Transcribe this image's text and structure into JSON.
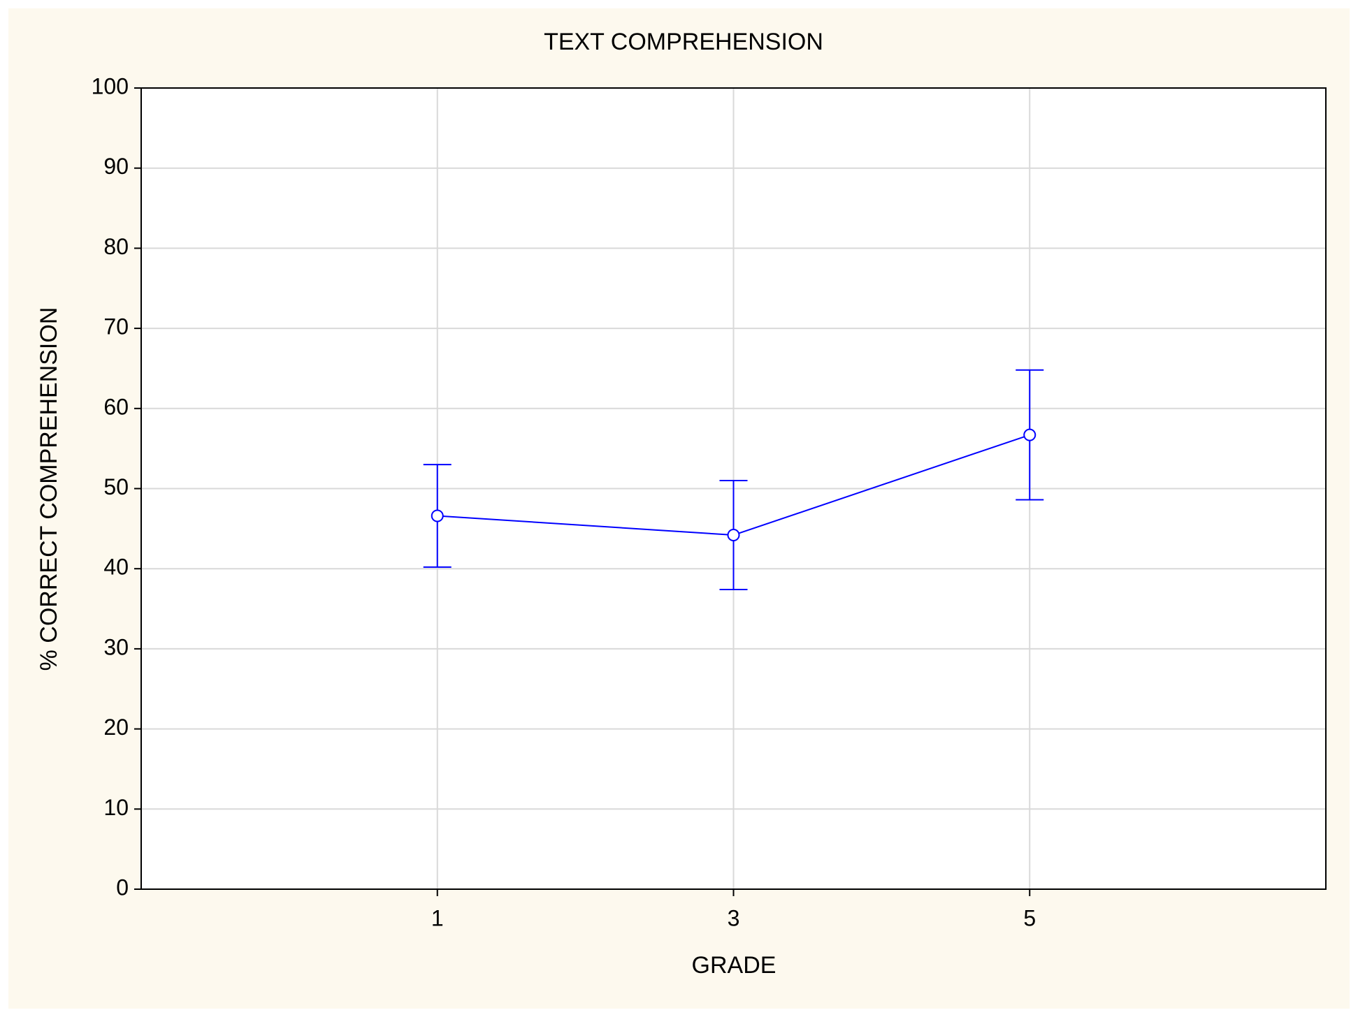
{
  "chart_data": {
    "type": "line",
    "title": "TEXT COMPREHENSION",
    "x_label": "GRADE",
    "y_label": "% CORRECT COMPREHENSION",
    "categories": [
      "1",
      "3",
      "5"
    ],
    "series": [
      {
        "color": "#0000ff",
        "values": [
          46.6,
          44.2,
          56.7
        ],
        "errors": [
          6.4,
          6.8,
          8.1
        ]
      }
    ],
    "ylim": [
      0,
      100
    ],
    "yticks": [
      0,
      10,
      20,
      30,
      40,
      50,
      60,
      70,
      80,
      90,
      100
    ],
    "grid": true
  }
}
